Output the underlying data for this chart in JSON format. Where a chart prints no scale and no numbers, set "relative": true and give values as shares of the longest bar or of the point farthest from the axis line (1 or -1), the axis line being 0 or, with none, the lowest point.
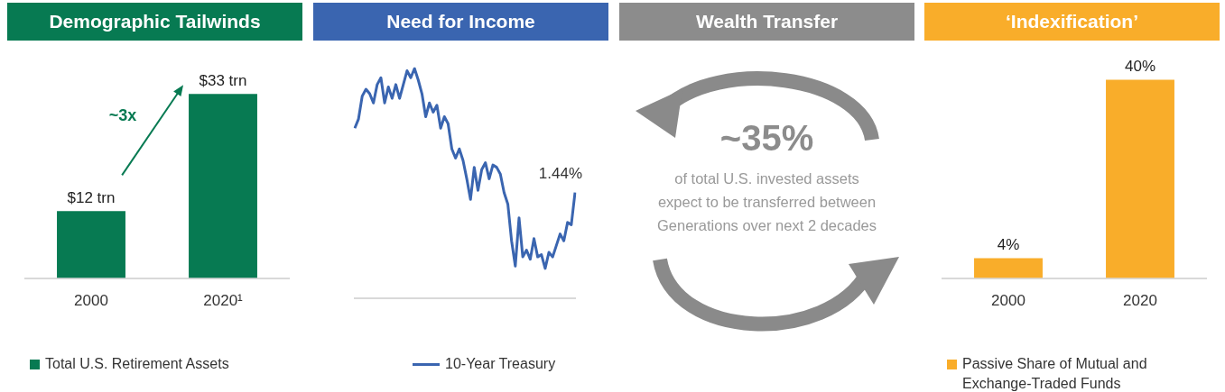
{
  "chart_data": [
    {
      "type": "bar",
      "title": "Demographic Tailwinds",
      "categories": [
        "2000",
        "2020¹"
      ],
      "series": [
        {
          "name": "Total U.S. Retirement Assets",
          "color": "#077a52",
          "values": [
            12,
            33
          ],
          "value_labels": [
            "$12 trn",
            "$33 trn"
          ]
        }
      ],
      "annotations": [
        "~3x"
      ],
      "legend": "bottom",
      "tick_labels": "x"
    },
    {
      "type": "line",
      "title": "Need for Income",
      "relative": true,
      "categories": [
        null,
        null,
        null,
        null,
        null,
        null,
        null,
        null,
        null,
        null,
        null,
        null,
        null,
        null,
        null,
        null,
        null,
        null,
        null,
        null,
        null,
        null,
        null,
        null,
        null,
        null,
        null,
        null,
        null,
        null,
        null,
        null,
        null,
        null,
        null,
        null,
        null,
        null,
        null,
        null,
        null,
        null,
        null,
        null,
        null,
        null,
        null,
        null,
        null,
        null,
        null,
        null,
        null,
        null,
        null,
        null,
        null,
        null,
        null,
        null
      ],
      "series": [
        {
          "name": "10-Year Treasury",
          "color": "#3a65b0",
          "values": [
            0.74,
            0.78,
            0.88,
            0.91,
            0.89,
            0.85,
            0.93,
            0.96,
            0.85,
            0.92,
            0.87,
            0.93,
            0.87,
            0.93,
            0.99,
            0.96,
            1,
            0.95,
            0.89,
            0.79,
            0.85,
            0.81,
            0.84,
            0.74,
            0.79,
            0.76,
            0.65,
            0.61,
            0.65,
            0.6,
            0.52,
            0.43,
            0.57,
            0.47,
            0.56,
            0.59,
            0.52,
            0.58,
            0.57,
            0.54,
            0.46,
            0.41,
            0.25,
            0.14,
            0.35,
            0.18,
            0.21,
            0.17,
            0.26,
            0.18,
            0.19,
            0.13,
            0.2,
            0.18,
            0.23,
            0.28,
            0.25,
            0.33,
            0.32,
            0.46
          ]
        }
      ],
      "annotations": [
        "1.44%"
      ],
      "legend": "bottom",
      "tick_labels": false
    },
    {
      "type": "other",
      "title": "Wealth Transfer",
      "annotations": [
        "~35%",
        "of total U.S. invested assets expect to be transferred between Generations over next 2 decades"
      ]
    },
    {
      "type": "bar",
      "title": "‘Indexification’",
      "categories": [
        "2000",
        "2020"
      ],
      "series": [
        {
          "name": "Passive Share of Mutual and Exchange-Traded Funds",
          "color": "#f9ad2a",
          "values": [
            4,
            40
          ],
          "value_labels": [
            "4%",
            "40%"
          ]
        }
      ],
      "legend": "bottom",
      "tick_labels": "x"
    }
  ]
}
